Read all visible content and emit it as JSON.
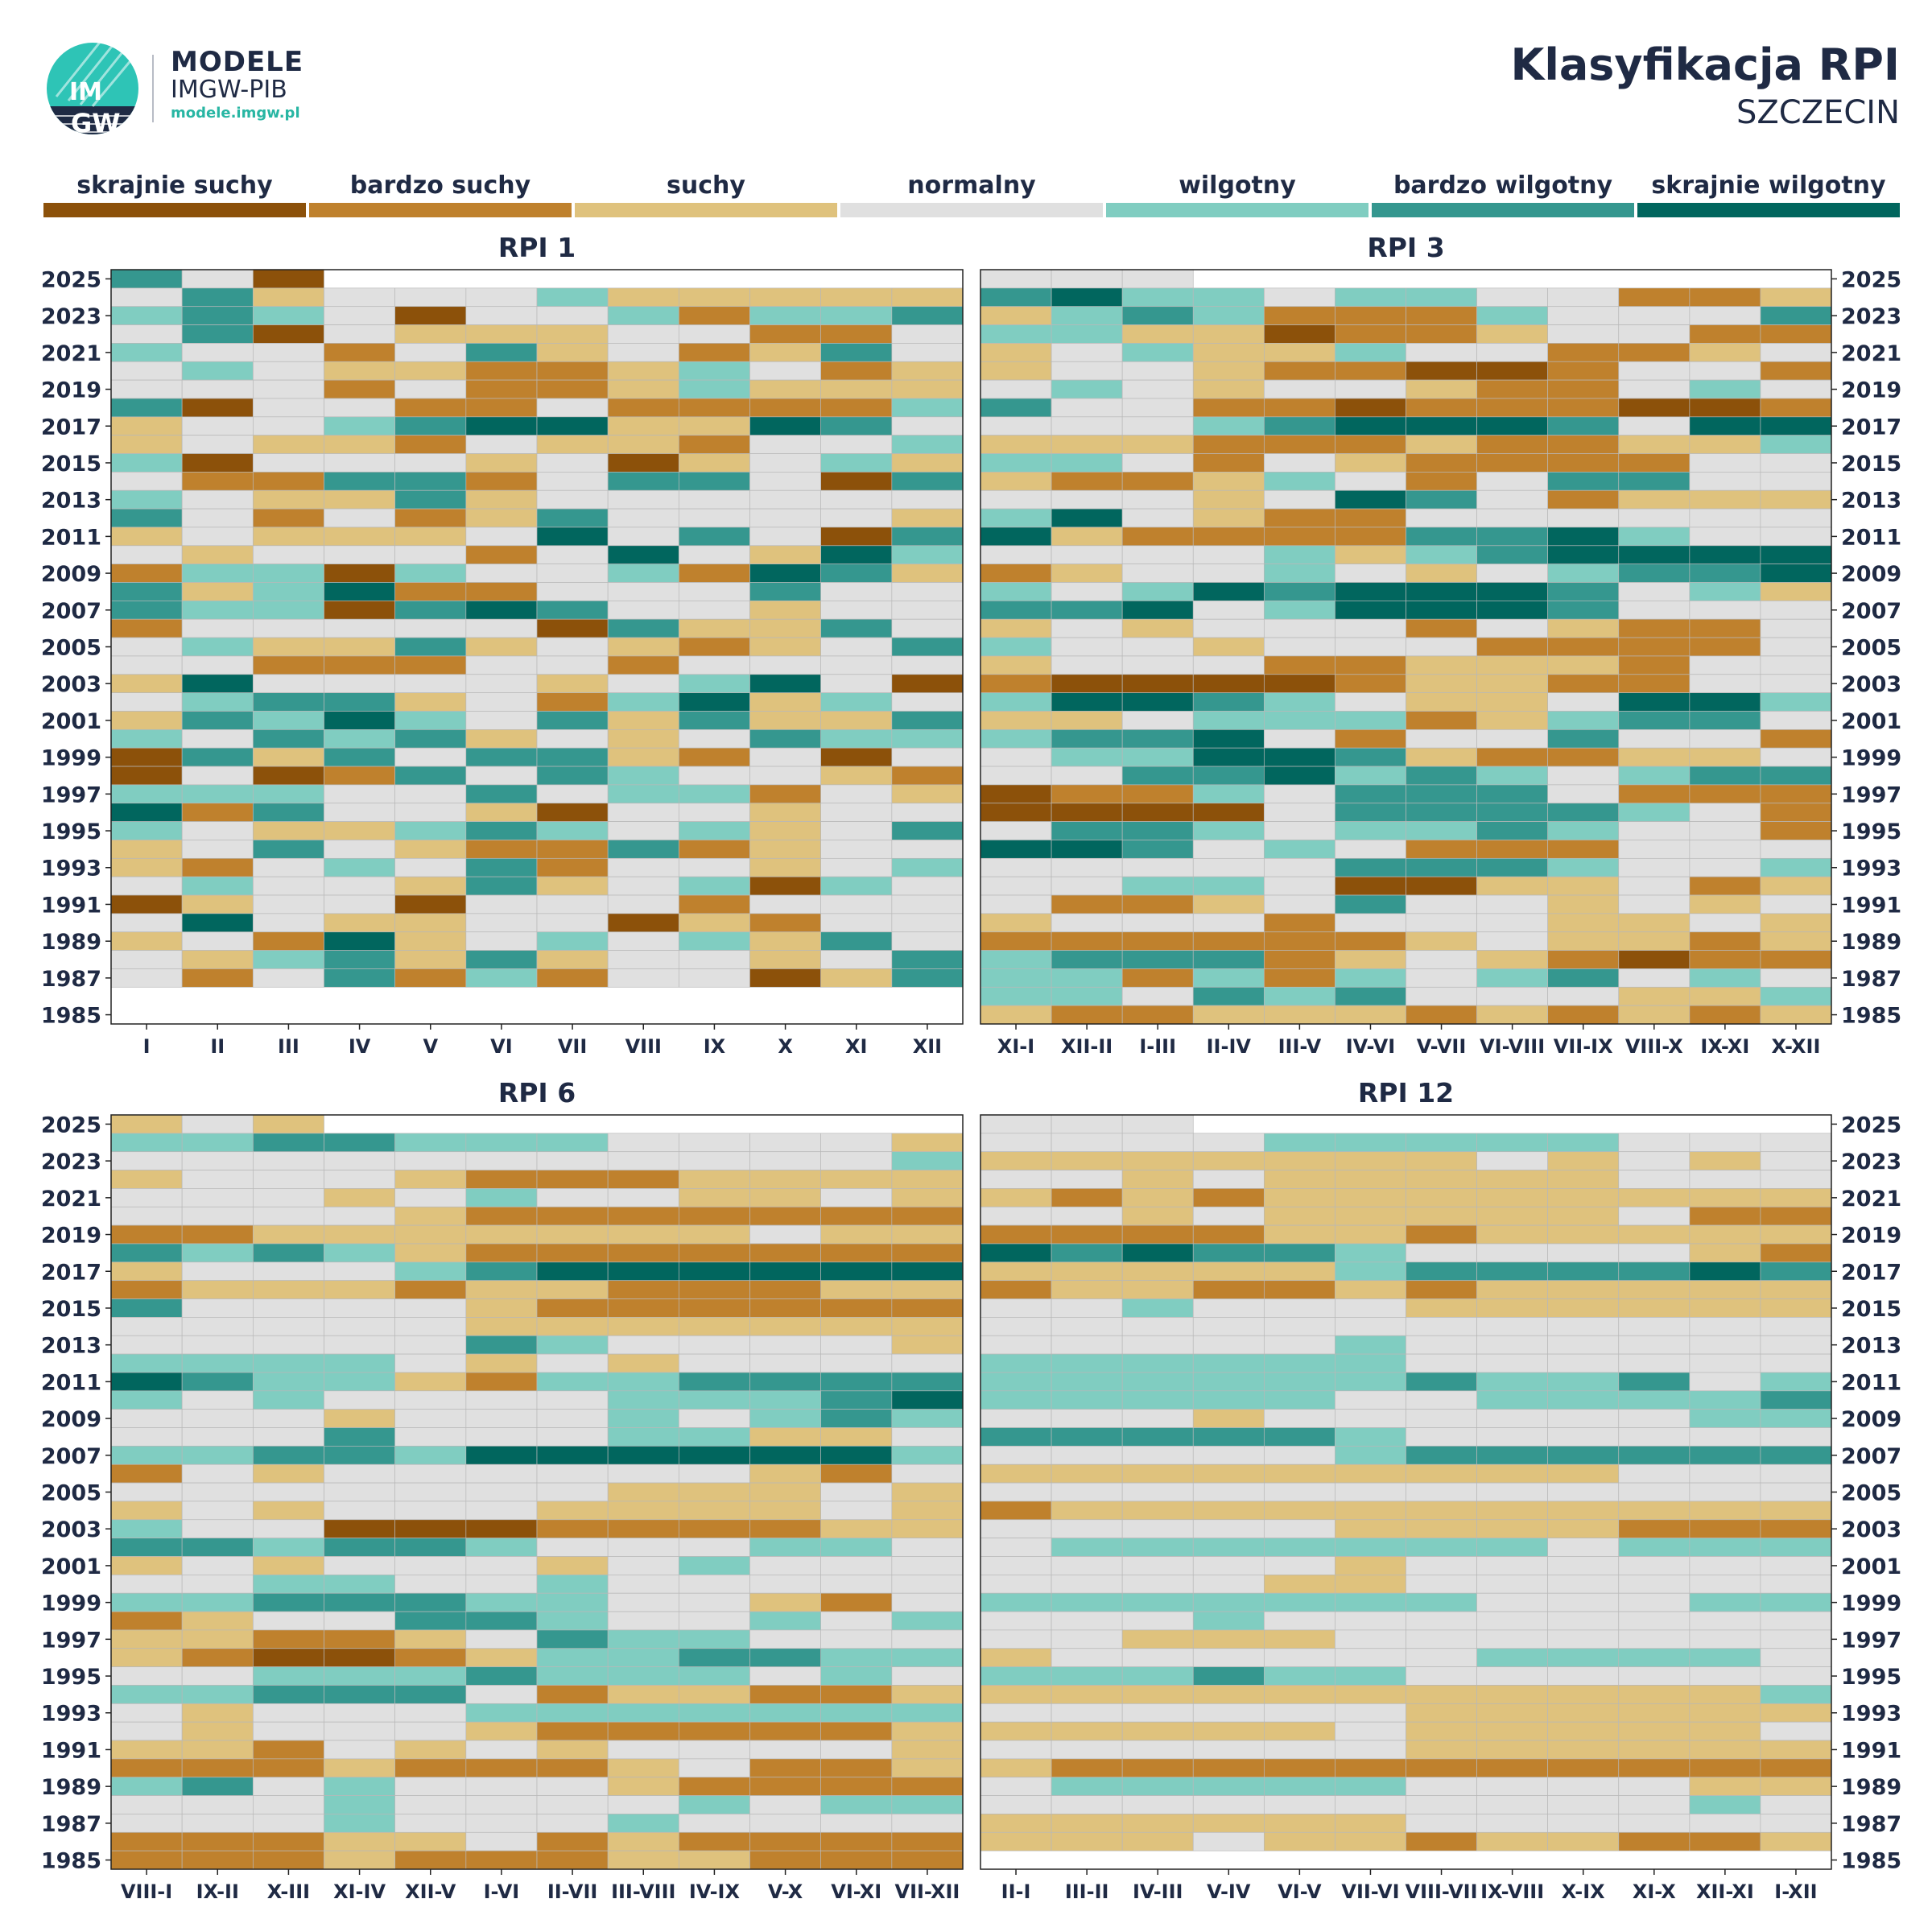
{
  "header": {
    "logo": {
      "name": "MODELE",
      "org": "IMGW-PIB",
      "url": "modele.imgw.pl",
      "emblem_text": "IMGW"
    },
    "title": "Klasyfikacja RPI",
    "subtitle": "SZCZECIN"
  },
  "legend": [
    {
      "label": "skrajnie suchy",
      "color": "#8c510a"
    },
    {
      "label": "bardzo suchy",
      "color": "#bf812d"
    },
    {
      "label": "suchy",
      "color": "#dfc27d"
    },
    {
      "label": "normalny",
      "color": "#e0e0e0"
    },
    {
      "label": "wilgotny",
      "color": "#80cdc1"
    },
    {
      "label": "bardzo wilgotny",
      "color": "#35978f"
    },
    {
      "label": "skrajnie wilgotny",
      "color": "#01665e"
    }
  ],
  "chart_data": [
    {
      "type": "heatmap",
      "title": "RPI 1",
      "x": [
        "I",
        "II",
        "III",
        "IV",
        "V",
        "VI",
        "VII",
        "VIII",
        "IX",
        "X",
        "XI",
        "XII"
      ],
      "y_ticks": [
        2025,
        2023,
        2021,
        2019,
        2017,
        2015,
        2013,
        2011,
        2009,
        2007,
        2005,
        2003,
        2001,
        1999,
        1997,
        1995,
        1993,
        1991,
        1989,
        1987,
        1985
      ],
      "year_range": [
        1985,
        2025
      ],
      "class_codes": "-3 skrajnie suchy … 0 normalny … 3 skrajnie wilgotny; rows listed from 2025 down to 1985",
      "rows": [
        "2 0 -3",
        "0 2 -1 0 0 0 1 -1 -1 -1 -1 -1",
        "1 2 1 0 -3 0 0 1 -2 1 1 2",
        "0 2 -3 0 -1 -1 -1 0 0 -2 -2 0",
        "1 0 0 -2 0 2 -1 0 -2 -1 2 0",
        "0 1 0 -1 -1 -2 -2 -1 1 0 -2 -1",
        "0 0 0 -2 0 -2 -2 -1 1 -1 -1 -1",
        "2 -3 0 0 -2 -2 0 -2 -2 -2 -2 1",
        "-1 0 0 1 2 3 3 -1 -1 3 2 0",
        "-1 0 -1 -1 -2 0 -1 -1 -2 0 0 1",
        "1 -3 0 0 0 -1 0 -3 -1 0 1 -1",
        "0 -2 -2 2 2 -2 0 2 2 0 -3 2",
        "1 0 -1 -1 2 -1 0 0 0 0 0 0",
        "2 0 -2 0 -2 -1 2 0 0 0 0 -1",
        "-1 0 -1 -1 -1 0 3 0 2 0 -3 2",
        "0 -1 0 0 0 -2 0 3 0 -1 3 1",
        "-2 1 1 -3 1 0 0 1 -2 3 2 -1",
        "2 -1 1 3 -2 -2 0 0 0 2 0 0",
        "2 1 1 -3 2 3 2 0 0 -1 0 0",
        "-2 0 0 0 0 0 -3 2 -1 -1 2 0",
        "0 1 -1 -1 2 -1 0 -1 -2 -1 0 2",
        "0 0 -2 -2 -2 0 0 -2 0 0 0 0",
        "-1 3 0 0 0 0 -1 0 1 3 0 -3",
        "0 1 2 2 -1 0 -2 1 3 -1 1 0",
        "-1 2 1 3 1 0 2 -1 2 -1 -1 2",
        "1 0 2 1 2 -1 0 -1 0 2 1 1",
        "-3 2 -1 2 0 2 2 -1 -2 0 -3 0",
        "-3 0 -3 -2 2 0 2 1 0 0 -1 -2",
        "1 1 1 0 0 2 0 1 1 -2 0 -1",
        "3 -2 2 0 0 -1 -3 0 0 -1 0 0",
        "1 0 -1 -1 1 2 1 0 1 -1 0 2",
        "-1 0 2 0 -1 -2 -2 2 -2 -1 0 0",
        "-1 -2 0 1 0 2 -2 0 0 -1 0 1",
        "0 1 0 0 -1 2 -1 0 1 -3 1 0",
        "-3 -1 0 0 -3 0 0 0 -2 0 0 0",
        "0 3 0 -1 -1 0 0 -3 -1 -2 0 0",
        "-1 0 -2 3 -1 0 1 0 1 -1 2 0",
        "0 -1 1 2 -1 2 -1 0 0 -1 0 2",
        "0 -2 0 2 -2 1 -2 0 0 -3 -1 2"
      ]
    },
    {
      "type": "heatmap",
      "title": "RPI 3",
      "x": [
        "XI-I",
        "XII-II",
        "I-III",
        "II-IV",
        "III-V",
        "IV-VI",
        "V-VII",
        "VI-VIII",
        "VII-IX",
        "VIII-X",
        "IX-XI",
        "X-XII"
      ],
      "y_ticks": [
        2025,
        2023,
        2021,
        2019,
        2017,
        2015,
        2013,
        2011,
        2009,
        2007,
        2005,
        2003,
        2001,
        1999,
        1997,
        1995,
        1993,
        1991,
        1989,
        1987,
        1985
      ],
      "year_range": [
        1985,
        2025
      ],
      "rows": [
        "0 0 0",
        "2 3 1 1 0 1 1 0 0 -2 -2 -1",
        "-1 1 2 1 -2 -2 -2 1 0 0 0 2",
        "1 1 -1 -1 -3 -2 -2 -1 0 0 -2 -2",
        "-1 0 1 -1 -1 1 0 0 -2 -2 -1 0",
        "-1 0 0 -1 -2 -2 -3 -3 -2 0 0 -2",
        "0 1 0 -1 0 0 -1 -2 -2 0 1 0",
        "2 0 0 -2 -2 -3 -2 -2 -2 -3 -3 -2",
        "0 0 0 1 2 3 3 3 2 0 3 3",
        "-1 -1 -1 -2 -2 -2 -1 -2 -2 -1 -1 1",
        "1 1 0 -2 0 -1 -2 -2 -2 -2 0 0",
        "-1 -2 -2 -1 1 0 -2 0 2 2 0 0",
        "0 0 0 -1 0 3 2 0 -2 -1 -1 -1",
        "1 3 0 -1 -2 -2 0 0 0 0 0 0",
        "3 -1 -2 -2 -2 -2 2 2 3 1 0 0",
        "0 0 0 0 1 -1 1 2 3 3 3 3",
        "-2 -1 0 0 1 0 -1 0 1 2 2 3",
        "1 0 1 3 2 3 3 3 2 0 1 -1",
        "2 2 3 0 1 3 3 3 2 0 0 0",
        "-1 0 -1 0 0 0 -2 0 -1 -2 -2 0",
        "1 0 0 -1 0 0 0 -2 -2 -2 -2 0",
        "-1 0 0 0 -2 -2 -1 -1 -1 -2 0 0",
        "-2 -3 -3 -3 -3 -2 -1 -1 -2 -2 0 0",
        "1 3 3 2 1 0 -1 -1 0 3 3 1",
        "-1 -1 0 1 1 1 -2 -1 1 2 2 0",
        "1 2 2 3 0 -2 0 0 2 0 0 -2",
        "0 1 1 3 3 2 -1 -2 -2 -1 -1 0",
        "0 0 2 2 3 1 2 1 0 1 2 2",
        "-3 -2 -2 1 0 2 2 2 0 -2 -2 -2",
        "-3 -3 -3 -3 0 2 2 2 2 1 0 -2",
        "0 2 2 1 0 1 1 2 1 0 0 -2",
        "3 3 2 0 1 0 -2 -2 -2 0 0 0",
        "0 0 0 0 0 2 2 2 1 0 0 1",
        "0 0 1 1 0 -3 -3 -1 -1 0 -2 -1",
        "0 -2 -2 -1 0 2 0 0 -1 0 -1 0",
        "-1 0 0 0 -2 0 0 0 -1 -1 0 -1",
        "-2 -2 -2 -2 -2 -2 -1 0 -1 -1 -2 -1",
        "1 2 2 2 -2 -1 0 -1 -2 -3 -2 -2",
        "1 1 -2 1 -2 1 0 1 2 0 1 0",
        "1 1 0 2 1 2 0 0 0 -1 -1 1",
        "-1 -2 -2 -1 -1 -1 -2 -1 -2 -1 -2 -1"
      ]
    },
    {
      "type": "heatmap",
      "title": "RPI 6",
      "x": [
        "VIII-I",
        "IX-II",
        "X-III",
        "XI-IV",
        "XII-V",
        "I-VI",
        "II-VII",
        "III-VIII",
        "IV-IX",
        "V-X",
        "VI-XI",
        "VII-XII"
      ],
      "y_ticks": [
        2025,
        2023,
        2021,
        2019,
        2017,
        2015,
        2013,
        2011,
        2009,
        2007,
        2005,
        2003,
        2001,
        1999,
        1997,
        1995,
        1993,
        1991,
        1989,
        1987,
        1985
      ],
      "year_range": [
        1985,
        2025
      ],
      "rows": [
        "-1 0 -1",
        "1 1 2 2 1 1 1 0 0 0 0 -1",
        "0 0 0 0 0 0 0 0 0 0 0 1",
        "-1 0 0 0 -1 -2 -2 -2 -1 -1 -1 -1",
        "0 0 0 -1 0 1 0 0 -1 -1 0 -1",
        "0 0 0 0 -1 -2 -2 -2 -2 -2 -2 -2",
        "-2 -2 -1 -1 -1 -1 -1 -1 -1 0 -1 -1",
        "2 1 2 1 -1 -2 -2 -2 -2 -2 -2 -2",
        "-1 0 0 0 1 2 3 3 3 3 3 3",
        "-2 -1 -1 -1 -2 -1 -1 -2 -2 -2 -1 -1",
        "2 0 0 0 0 -1 -2 -2 -2 -2 -2 -2",
        "0 0 0 0 0 -1 -1 -1 -1 -1 -1 -1",
        "0 0 0 0 0 2 1 0 0 0 0 -1",
        "1 1 1 1 0 -1 0 -1 0 0 0 0",
        "3 2 1 1 -1 -2 1 1 2 2 2 2",
        "1 0 1 0 0 0 0 1 1 1 2 3",
        "0 0 0 -1 0 0 0 1 0 1 2 1",
        "0 0 0 2 0 0 0 1 1 -1 -1 0",
        "1 1 2 2 1 3 3 3 3 3 3 1",
        "-2 0 -1 0 0 0 0 0 0 -1 -2 0",
        "0 0 0 0 0 0 0 -1 -1 -1 0 -1",
        "-1 0 -1 0 0 0 -1 -1 -1 -1 0 -1",
        "1 0 0 -3 -3 -3 -2 -2 -2 -2 -1 -1",
        "2 2 1 2 2 1 0 0 0 1 1 0",
        "-1 0 -1 0 0 0 -1 0 1 0 0 0",
        "0 0 1 1 0 0 1 0 0 0 0 0",
        "1 1 2 2 2 1 1 0 0 -1 -2 0",
        "-2 -1 0 0 2 2 1 0 0 1 0 1",
        "-1 -1 -2 -2 -1 0 2 1 1 0 0 0",
        "-1 -2 -3 -3 -2 -1 1 1 2 2 1 1",
        "0 0 1 1 1 2 1 1 1 0 1 0",
        "1 1 2 2 2 0 -2 -1 -1 -2 -2 -1",
        "0 -1 0 0 0 1 1 1 1 1 1 1",
        "0 -1 0 0 0 -1 -2 -2 -2 -2 -2 -1",
        "-1 -1 -2 0 -1 0 -1 0 0 0 0 -1",
        "-2 -2 -2 -1 -2 -2 -2 -1 0 -2 -2 -1",
        "1 2 0 1 0 0 0 -1 -2 -2 -2 -2",
        "0 0 0 1 0 0 0 0 1 0 1 1",
        "0 0 0 1 0 0 0 1 0 0 0 0",
        "-2 -2 -2 -1 -1 0 -2 -1 -2 -2 -2 -2",
        "-2 -2 -2 -1 -2 -2 -2 -1 -1 -2 -2 -2"
      ]
    },
    {
      "type": "heatmap",
      "title": "RPI 12",
      "x": [
        "II-I",
        "III-II",
        "IV-III",
        "V-IV",
        "VI-V",
        "VII-VI",
        "VIII-VII",
        "IX-VIII",
        "X-IX",
        "XI-X",
        "XII-XI",
        "I-XII"
      ],
      "y_ticks": [
        2025,
        2023,
        2021,
        2019,
        2017,
        2015,
        2013,
        2011,
        2009,
        2007,
        2005,
        2003,
        2001,
        1999,
        1997,
        1995,
        1993,
        1991,
        1989,
        1987,
        1985
      ],
      "year_range": [
        1985,
        2025
      ],
      "rows": [
        "0 0 0",
        "0 0 0 0 1 1 1 1 1 0 0 0",
        "-1 -1 -1 -1 -1 -1 -1 0 -1 0 -1 0",
        "0 0 -1 0 -1 -1 -1 -1 -1 0 0 0",
        "-1 -2 -1 -2 -1 -1 -1 -1 -1 -1 -1 -1",
        "0 0 -1 0 -1 -1 -1 -1 -1 0 -2 -2",
        "-2 -2 -2 -2 -1 -1 -2 -1 -1 -1 -1 -1",
        "3 2 3 2 2 1 0 0 0 0 -1 -2",
        "-1 -1 -1 -1 -1 1 2 2 2 2 3 2",
        "-2 -1 -1 -2 -2 -1 -2 -1 -1 -1 -1 -1",
        "0 0 1 0 0 0 -1 -1 -1 -1 -1 -1",
        "0 0 0 0 0 0 0 0 0 0 0 0",
        "0 0 0 0 0 1 0 0 0 0 0 0",
        "1 1 1 1 1 1 0 0 0 0 0 0",
        "1 1 1 1 1 1 2 1 1 2 0 1",
        "1 1 1 1 1 0 0 1 1 1 1 2",
        "0 0 0 -1 0 0 0 0 0 0 1 1",
        "2 2 2 2 2 1 0 0 0 0 0 0",
        "0 0 0 0 0 1 2 2 2 2 2 2",
        "-1 -1 -1 -1 -1 -1 -1 -1 -1 0 0 0",
        "0 0 0 0 0 0 0 0 0 0 0 0",
        "-2 -1 -1 -1 -1 -1 -1 -1 -1 -1 -1 -1",
        "0 0 0 0 0 -1 -1 -1 -1 -2 -2 -2",
        "0 1 1 1 1 1 1 1 0 1 1 1",
        "0 0 0 0 0 -1 0 0 0 0 0 0",
        "0 0 0 0 -1 -1 0 0 0 0 0 0",
        "1 1 1 1 1 1 1 0 0 0 1 1",
        "0 0 0 1 0 0 0 0 0 0 0 0",
        "0 0 -1 -1 -1 0 0 0 0 0 0 0",
        "-1 0 0 0 0 0 0 1 1 1 1 0",
        "1 1 1 2 1 1 0 0 0 0 0 0",
        "-1 -1 -1 -1 -1 -1 -1 -1 -1 -1 -1 1",
        "0 0 0 0 0 0 -1 -1 -1 -1 -1 -1",
        "-1 -1 -1 -1 -1 0 -1 -1 -1 -1 -1 0",
        "0 0 0 0 0 0 -1 -1 -1 -1 -1 -1",
        "-1 -2 -2 -2 -2 -2 -2 -2 -2 -2 -2 -2",
        "0 1 1 1 1 1 0 0 0 0 -1 -1",
        "0 0 0 0 0 0 0 0 0 0 1 0",
        "-1 -1 -1 -1 -1 -1 0 0 0 0 0 0",
        "-1 -1 -1 0 -1 -1 -2 -1 -1 -2 -2 -1"
      ]
    }
  ]
}
